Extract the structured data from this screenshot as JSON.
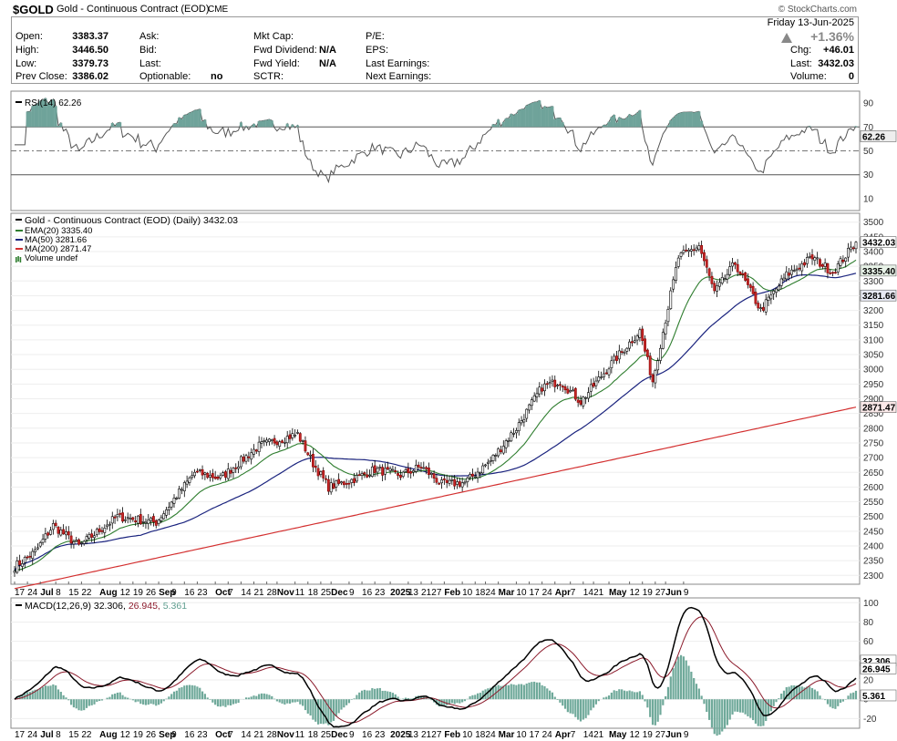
{
  "header": {
    "symbol": "$GOLD",
    "name": "Gold - Continuous Contract (EOD)",
    "exchange": "CME",
    "brand": "© StockCharts.com"
  },
  "quote": {
    "open_label": "Open:",
    "open": "3383.37",
    "high_label": "High:",
    "high": "3446.50",
    "low_label": "Low:",
    "low": "3379.73",
    "prev_label": "Prev Close:",
    "prev": "3386.02",
    "ask_label": "Ask:",
    "bid_label": "Bid:",
    "last_label": "Last:",
    "optionable_label": "Optionable:",
    "optionable": "no",
    "mktcap_label": "Mkt Cap:",
    "fwddiv_label": "Fwd Dividend:",
    "fwddiv": "N/A",
    "fwdyield_label": "Fwd Yield:",
    "fwdyield": "N/A",
    "sctr_label": "SCTR:",
    "pe_label": "P/E:",
    "eps_label": "EPS:",
    "lastearn_label": "Last Earnings:",
    "nextearn_label": "Next Earnings:",
    "date": "Friday   13-Jun-2025",
    "pct": "+1.36%",
    "chg_label": "Chg:",
    "chg": "+46.01",
    "last2_label": "Last:",
    "last2": "3432.03",
    "volume_label": "Volume:",
    "volume": "0"
  },
  "chart_data": [
    {
      "type": "line",
      "panel": "rsi",
      "legend": "RSI(14) 62.26",
      "current_value": 62.26,
      "ylim": [
        0,
        100
      ],
      "yticks": [
        10,
        30,
        50,
        70,
        90
      ],
      "overbought": 70,
      "oversold": 30,
      "color": "#555555"
    },
    {
      "type": "candlestick",
      "panel": "price",
      "legend": "Gold - Continuous Contract (EOD) (Daily) 3432.03",
      "series": [
        {
          "name": "EMA(20) 3335.40",
          "value": 3335.4,
          "color": "#2e7d2e"
        },
        {
          "name": "MA(50) 3281.66",
          "value": 3281.66,
          "color": "#1a237e"
        },
        {
          "name": "MA(200) 2871.47",
          "value": 2871.47,
          "color": "#d32f2f"
        },
        {
          "name": "Volume undef",
          "color": "#2e7d2e"
        }
      ],
      "last": 3432.03,
      "ylim": [
        2270,
        3530
      ],
      "yticks": [
        2300,
        2350,
        2400,
        2450,
        2500,
        2550,
        2600,
        2650,
        2700,
        2750,
        2800,
        2850,
        2900,
        2950,
        3000,
        3050,
        3100,
        3150,
        3200,
        3250,
        3300,
        3350,
        3400,
        3450,
        3500
      ],
      "key_points": [
        [
          0,
          2330
        ],
        [
          8,
          2380
        ],
        [
          15,
          2470
        ],
        [
          25,
          2400
        ],
        [
          40,
          2500
        ],
        [
          55,
          2480
        ],
        [
          70,
          2650
        ],
        [
          80,
          2630
        ],
        [
          95,
          2740
        ],
        [
          110,
          2780
        ],
        [
          116,
          2680
        ],
        [
          122,
          2600
        ],
        [
          130,
          2620
        ],
        [
          140,
          2660
        ],
        [
          150,
          2640
        ],
        [
          158,
          2670
        ],
        [
          166,
          2610
        ],
        [
          175,
          2615
        ],
        [
          185,
          2690
        ],
        [
          195,
          2800
        ],
        [
          205,
          2940
        ],
        [
          212,
          2960
        ],
        [
          220,
          2890
        ],
        [
          232,
          3020
        ],
        [
          243,
          3130
        ],
        [
          248,
          2960
        ],
        [
          258,
          3380
        ],
        [
          266,
          3420
        ],
        [
          272,
          3260
        ],
        [
          280,
          3360
        ],
        [
          290,
          3200
        ],
        [
          300,
          3320
        ],
        [
          310,
          3380
        ],
        [
          318,
          3330
        ],
        [
          327,
          3432
        ]
      ]
    },
    {
      "type": "line",
      "panel": "macd",
      "legend": "MACD(12,26,9)",
      "values": [
        "32.306",
        "26.945",
        "5.361"
      ],
      "ylim": [
        -30,
        105
      ],
      "yticks": [
        -20,
        0,
        20,
        40,
        60,
        80,
        100
      ],
      "series": [
        {
          "name": "MACD",
          "color": "#000000"
        },
        {
          "name": "Signal",
          "color": "#8b1a2b"
        },
        {
          "name": "Histogram",
          "color": "#5f9e8f"
        }
      ]
    }
  ],
  "x_axis": {
    "labels": [
      {
        "t": "17",
        "bold": false,
        "i": 0
      },
      {
        "t": "24",
        "bold": false,
        "i": 5
      },
      {
        "t": "Jul",
        "bold": true,
        "i": 10
      },
      {
        "t": "8",
        "bold": false,
        "i": 16
      },
      {
        "t": "15",
        "bold": false,
        "i": 21
      },
      {
        "t": "22",
        "bold": false,
        "i": 26
      },
      {
        "t": "Aug",
        "bold": true,
        "i": 33
      },
      {
        "t": "12",
        "bold": false,
        "i": 41
      },
      {
        "t": "19",
        "bold": false,
        "i": 46
      },
      {
        "t": "26",
        "bold": false,
        "i": 51
      },
      {
        "t": "Sep",
        "bold": true,
        "i": 56
      },
      {
        "t": "9",
        "bold": false,
        "i": 61
      },
      {
        "t": "16",
        "bold": false,
        "i": 66
      },
      {
        "t": "23",
        "bold": false,
        "i": 71
      },
      {
        "t": "Oct",
        "bold": true,
        "i": 78
      },
      {
        "t": "7",
        "bold": false,
        "i": 83
      },
      {
        "t": "14",
        "bold": false,
        "i": 88
      },
      {
        "t": "21",
        "bold": false,
        "i": 93
      },
      {
        "t": "28",
        "bold": false,
        "i": 98
      },
      {
        "t": "Nov",
        "bold": true,
        "i": 102
      },
      {
        "t": "11",
        "bold": false,
        "i": 109
      },
      {
        "t": "18",
        "bold": false,
        "i": 114
      },
      {
        "t": "25",
        "bold": false,
        "i": 119
      },
      {
        "t": "Dec",
        "bold": true,
        "i": 123
      },
      {
        "t": "9",
        "bold": false,
        "i": 130
      },
      {
        "t": "16",
        "bold": false,
        "i": 135
      },
      {
        "t": "23",
        "bold": false,
        "i": 140
      },
      {
        "t": "2025",
        "bold": true,
        "i": 146
      },
      {
        "t": "13",
        "bold": false,
        "i": 153
      },
      {
        "t": "21",
        "bold": false,
        "i": 158
      },
      {
        "t": "27",
        "bold": false,
        "i": 162
      },
      {
        "t": "Feb",
        "bold": true,
        "i": 167
      },
      {
        "t": "10",
        "bold": false,
        "i": 174
      },
      {
        "t": "18",
        "bold": false,
        "i": 179
      },
      {
        "t": "24",
        "bold": false,
        "i": 183
      },
      {
        "t": "Mar",
        "bold": true,
        "i": 188
      },
      {
        "t": "10",
        "bold": false,
        "i": 195
      },
      {
        "t": "17",
        "bold": false,
        "i": 200
      },
      {
        "t": "24",
        "bold": false,
        "i": 205
      },
      {
        "t": "Apr",
        "bold": true,
        "i": 210
      },
      {
        "t": "7",
        "bold": false,
        "i": 216
      },
      {
        "t": "14",
        "bold": false,
        "i": 221
      },
      {
        "t": "21",
        "bold": false,
        "i": 225
      },
      {
        "t": "May",
        "bold": true,
        "i": 231
      },
      {
        "t": "12",
        "bold": false,
        "i": 239
      },
      {
        "t": "19",
        "bold": false,
        "i": 244
      },
      {
        "t": "27",
        "bold": false,
        "i": 249
      },
      {
        "t": "Jun",
        "bold": true,
        "i": 253
      },
      {
        "t": "9",
        "bold": false,
        "i": 260
      }
    ]
  }
}
